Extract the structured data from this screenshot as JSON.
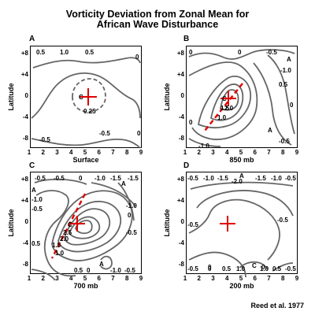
{
  "title": {
    "line1": "Vorticity Deviation from Zonal Mean for",
    "line2": "African Wave Disturbance"
  },
  "credit": "Reed et al. 1977",
  "axes": {
    "ylabel": "Latitude",
    "yticks": [
      "+8",
      "+4",
      "0",
      "-4",
      "-8"
    ],
    "xticks": [
      "1",
      "2",
      "3",
      "4",
      "5",
      "6",
      "7",
      "8",
      "9"
    ]
  },
  "panels": [
    {
      "letter": "A",
      "level": "Surface",
      "labels": [
        "0.5",
        "1.0",
        "0.5",
        "0",
        "C",
        "0.25",
        "-0.5",
        "-0.5",
        "0"
      ]
    },
    {
      "letter": "B",
      "level": "850 mb",
      "labels": [
        "0",
        "0",
        "-0.5",
        "A",
        "-1.0",
        "C",
        "2.0",
        "1.5",
        "1.0",
        "0",
        "A",
        "0.5",
        "-1.0",
        "-0.5",
        "0"
      ]
    },
    {
      "letter": "C",
      "level": "700 mb",
      "labels": [
        "-0.5",
        "-0.5",
        "0",
        "-1.0",
        "-1.5",
        "A",
        "-1.5",
        "A",
        "-1.0",
        "-0.5",
        "C",
        "2.5",
        "2.0",
        "1.5",
        "1.0",
        "0.5",
        "0",
        "A",
        "-1.0",
        "-0.5",
        "0",
        "0.5",
        "-1.0",
        "-0.5"
      ]
    },
    {
      "letter": "D",
      "level": "200 mb",
      "labels": [
        "-0.5",
        "-1.0",
        "-1.5",
        "-2.0",
        "A",
        "-1.5",
        "-1.0",
        "-0.5",
        "-0.5",
        "-0.5",
        "0",
        "0",
        "-0.5",
        "0",
        "0.5",
        "1.0",
        "C",
        "1.0",
        "0.5",
        "-0.5"
      ]
    }
  ]
}
